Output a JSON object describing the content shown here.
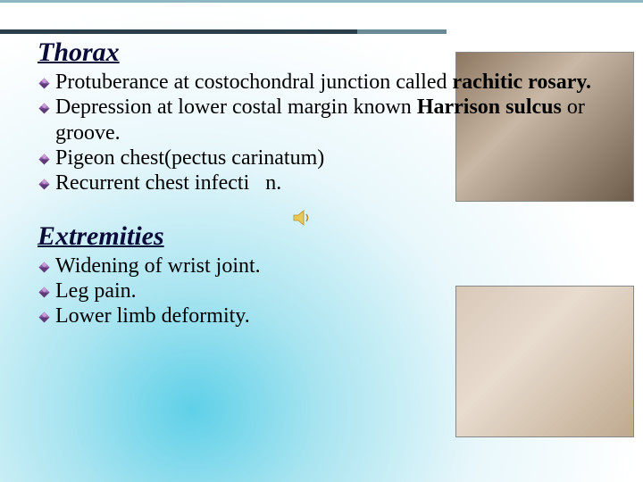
{
  "slide": {
    "heading1": "Thorax",
    "heading2": "Extremities",
    "bullets_thorax": [
      {
        "pre": "Protuberance at costochondral junction called ",
        "bold": "rachitic rosary.",
        "post": ""
      },
      {
        "pre": "Depression at lower costal margin known ",
        "bold": "Harrison sulcus",
        "post": " or groove."
      },
      {
        "pre": "Pigeon chest(pectus carinatum)",
        "bold": "",
        "post": ""
      },
      {
        "pre": "Recurrent chest infecti",
        "bold": "",
        "post": "n.",
        "sound_gap": true
      }
    ],
    "bullets_extremities": [
      {
        "pre": "Widening of wrist joint.",
        "bold": "",
        "post": ""
      },
      {
        "pre": "Leg pain.",
        "bold": "",
        "post": ""
      },
      {
        "pre": "Lower limb deformity.",
        "bold": "",
        "post": ""
      }
    ],
    "diamond_colors": {
      "top": "#c89bd8",
      "left": "#8f5aaa",
      "right": "#a978c2",
      "bottom": "#5e3a78"
    },
    "accent_colors": {
      "top_line": "#8fb8c4",
      "bar_dark": "#2a3f4a",
      "bar_light": "#6b8a96",
      "heading": "#0b0b3a"
    },
    "images": [
      {
        "name": "thorax-photo",
        "alt": "infant torso showing rachitic rosary"
      },
      {
        "name": "wrist-photo",
        "alt": "infant wrist/hand showing widening"
      }
    ]
  }
}
